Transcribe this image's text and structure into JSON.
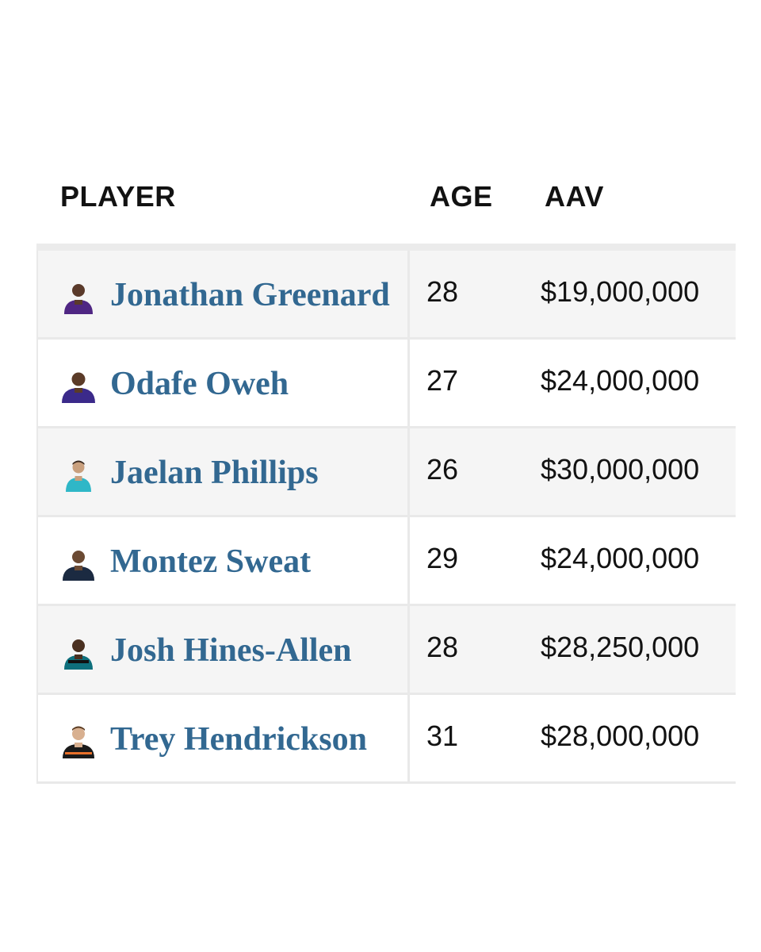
{
  "table": {
    "headers": {
      "player": "PLAYER",
      "age": "AGE",
      "aav": "AAV"
    },
    "rows": [
      {
        "name": "Jonathan Greenard",
        "age": "28",
        "aav": "$19,000,000",
        "avatar_icon": "player-headshot-icon",
        "jersey_color": "#4f2683"
      },
      {
        "name": "Odafe Oweh",
        "age": "27",
        "aav": "$24,000,000",
        "avatar_icon": "player-headshot-icon",
        "jersey_color": "#3b2a8a"
      },
      {
        "name": "Jaelan Phillips",
        "age": "26",
        "aav": "$30,000,000",
        "avatar_icon": "player-headshot-icon",
        "jersey_color": "#2fb7c7"
      },
      {
        "name": "Montez Sweat",
        "age": "29",
        "aav": "$24,000,000",
        "avatar_icon": "player-headshot-icon",
        "jersey_color": "#1b2a41"
      },
      {
        "name": "Josh Hines-Allen",
        "age": "28",
        "aav": "$28,250,000",
        "avatar_icon": "player-headshot-icon",
        "jersey_color": "#0e6f7c"
      },
      {
        "name": "Trey Hendrickson",
        "age": "31",
        "aav": "$28,000,000",
        "avatar_icon": "player-headshot-icon",
        "jersey_color": "#1a1a1a"
      }
    ]
  },
  "colors": {
    "name_link": "#326891",
    "row_shade": "#f5f5f5",
    "border": "#e9e9e9"
  }
}
